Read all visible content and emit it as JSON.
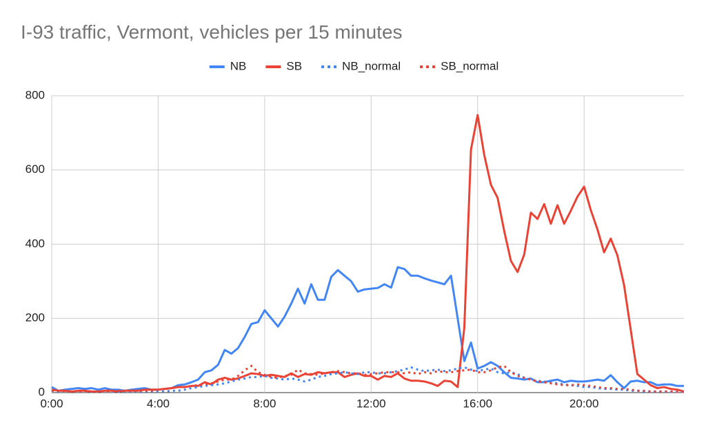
{
  "chart_data": {
    "type": "line",
    "title": "I-93 traffic, Vermont, vehicles per 15 minutes",
    "x": [
      0,
      0.25,
      0.5,
      0.75,
      1,
      1.25,
      1.5,
      1.75,
      2,
      2.25,
      2.5,
      2.75,
      3,
      3.25,
      3.5,
      3.75,
      4,
      4.25,
      4.5,
      4.75,
      5,
      5.25,
      5.5,
      5.75,
      6,
      6.25,
      6.5,
      6.75,
      7,
      7.25,
      7.5,
      7.75,
      8,
      8.25,
      8.5,
      8.75,
      9,
      9.25,
      9.5,
      9.75,
      10,
      10.25,
      10.5,
      10.75,
      11,
      11.25,
      11.5,
      11.75,
      12,
      12.25,
      12.5,
      12.75,
      13,
      13.25,
      13.5,
      13.75,
      14,
      14.25,
      14.5,
      14.75,
      15,
      15.25,
      15.5,
      15.75,
      16,
      16.25,
      16.5,
      16.75,
      17,
      17.25,
      17.5,
      17.75,
      18,
      18.25,
      18.5,
      18.75,
      19,
      19.25,
      19.5,
      19.75,
      20,
      20.25,
      20.5,
      20.75,
      21,
      21.25,
      21.5,
      21.75,
      22,
      22.25,
      22.5,
      22.75,
      23,
      23.25,
      23.5,
      23.75
    ],
    "series": [
      {
        "name": "NB",
        "color": "#4285f4",
        "line_style": "solid",
        "values": [
          15,
          5,
          8,
          10,
          12,
          10,
          12,
          8,
          12,
          8,
          8,
          5,
          8,
          10,
          12,
          8,
          8,
          10,
          12,
          20,
          22,
          28,
          35,
          55,
          60,
          75,
          115,
          105,
          120,
          150,
          185,
          190,
          222,
          200,
          178,
          205,
          240,
          280,
          240,
          292,
          250,
          250,
          312,
          330,
          315,
          300,
          272,
          278,
          280,
          282,
          292,
          283,
          338,
          333,
          315,
          315,
          308,
          302,
          297,
          292,
          315,
          200,
          85,
          135,
          65,
          72,
          82,
          72,
          55,
          40,
          38,
          35,
          38,
          28,
          28,
          32,
          35,
          28,
          32,
          30,
          30,
          32,
          35,
          32,
          47,
          28,
          12,
          30,
          32,
          28,
          28,
          20,
          22,
          22,
          18,
          18
        ]
      },
      {
        "name": "SB",
        "color": "#ea4335",
        "line_style": "solid",
        "values": [
          8,
          5,
          5,
          3,
          5,
          5,
          3,
          3,
          5,
          5,
          3,
          5,
          5,
          5,
          8,
          8,
          8,
          10,
          12,
          15,
          15,
          18,
          18,
          28,
          22,
          35,
          40,
          35,
          38,
          45,
          52,
          50,
          45,
          48,
          45,
          42,
          52,
          42,
          50,
          48,
          55,
          52,
          55,
          55,
          42,
          48,
          52,
          45,
          45,
          35,
          45,
          42,
          52,
          38,
          32,
          32,
          30,
          25,
          18,
          32,
          30,
          15,
          175,
          655,
          748,
          640,
          560,
          525,
          435,
          355,
          325,
          372,
          485,
          468,
          508,
          455,
          505,
          455,
          490,
          528,
          555,
          492,
          440,
          378,
          415,
          370,
          290,
          170,
          50,
          35,
          20,
          12,
          15,
          10,
          8,
          3
        ]
      },
      {
        "name": "NB_normal",
        "color": "#4285f4",
        "line_style": "dotted",
        "values": [
          5,
          3,
          2,
          3,
          3,
          2,
          2,
          2,
          2,
          2,
          2,
          3,
          3,
          3,
          3,
          3,
          3,
          3,
          5,
          5,
          8,
          12,
          15,
          18,
          20,
          22,
          25,
          30,
          35,
          38,
          42,
          42,
          45,
          40,
          38,
          35,
          38,
          35,
          30,
          35,
          42,
          45,
          50,
          52,
          55,
          52,
          50,
          55,
          55,
          52,
          52,
          55,
          58,
          62,
          68,
          62,
          58,
          60,
          62,
          58,
          60,
          65,
          68,
          62,
          58,
          62,
          65,
          55,
          52,
          55,
          50,
          40,
          35,
          32,
          30,
          28,
          25,
          22,
          20,
          18,
          15,
          15,
          12,
          10,
          10,
          8,
          8,
          5,
          5,
          3,
          3,
          3,
          3,
          2,
          2,
          2
        ]
      },
      {
        "name": "SB_normal",
        "color": "#ea4335",
        "line_style": "dotted",
        "values": [
          5,
          5,
          3,
          3,
          3,
          3,
          3,
          3,
          3,
          3,
          5,
          5,
          5,
          5,
          5,
          5,
          8,
          10,
          12,
          15,
          15,
          18,
          20,
          22,
          25,
          30,
          35,
          35,
          45,
          60,
          72,
          55,
          48,
          42,
          40,
          45,
          48,
          62,
          52,
          50,
          48,
          52,
          55,
          58,
          55,
          52,
          52,
          48,
          50,
          52,
          55,
          55,
          55,
          52,
          55,
          50,
          55,
          52,
          58,
          55,
          55,
          58,
          60,
          62,
          55,
          55,
          60,
          68,
          72,
          55,
          45,
          40,
          35,
          30,
          28,
          25,
          22,
          20,
          20,
          22,
          20,
          18,
          15,
          12,
          12,
          10,
          10,
          8,
          5,
          5,
          3,
          3,
          3,
          3,
          2,
          2
        ]
      }
    ],
    "xlim": [
      0,
      23.75
    ],
    "xticks": [
      {
        "value": 0,
        "label": "0:00"
      },
      {
        "value": 4,
        "label": "4:00"
      },
      {
        "value": 8,
        "label": "8:00"
      },
      {
        "value": 12,
        "label": "12:00"
      },
      {
        "value": 16,
        "label": "16:00"
      },
      {
        "value": 20,
        "label": "20:00"
      }
    ],
    "ylim": [
      0,
      800
    ],
    "yticks": [
      0,
      200,
      400,
      600,
      800
    ],
    "grid": true,
    "legend": "top"
  }
}
